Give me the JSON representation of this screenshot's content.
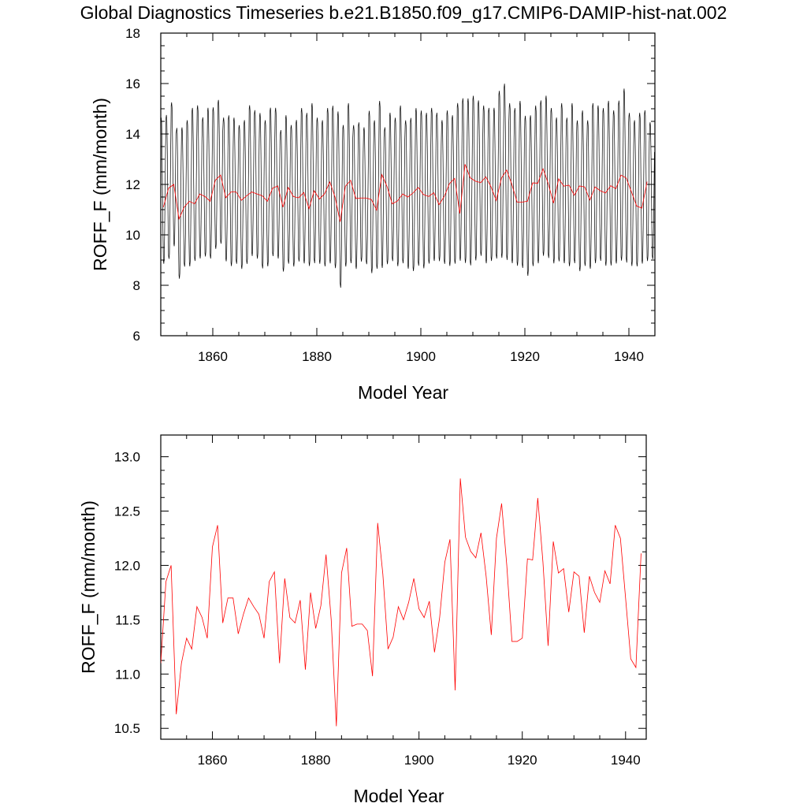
{
  "title": "Global Diagnostics Timeseries b.e21.B1850.f09_g17.CMIP6-DAMIP-hist-nat.002",
  "colors": {
    "monthly": "#000000",
    "annual": "#ff0000"
  },
  "chart_data": [
    {
      "type": "line",
      "xlabel": "Model Year",
      "ylabel": "ROFF_F (mm/month)",
      "xlim": [
        1850,
        1945
      ],
      "ylim": [
        6,
        18
      ],
      "xticks": [
        1860,
        1880,
        1900,
        1920,
        1940
      ],
      "xtick_labels": [
        "1860",
        "1880",
        "1900",
        "1920",
        "1940"
      ],
      "yticks": [
        6,
        8,
        10,
        12,
        14,
        16,
        18
      ],
      "ytick_labels": [
        "6",
        "8",
        "10",
        "12",
        "14",
        "16",
        "18"
      ],
      "series": [
        {
          "kind": "monthly",
          "color": "#000000",
          "x_start": 1850.0,
          "x_step": 0.0833333,
          "annual_peaks": [
            14.9,
            15.0,
            15.5,
            14.5,
            14.5,
            14.8,
            15.3,
            15.4,
            14.9,
            15.3,
            15.3,
            15.6,
            14.9,
            15.0,
            14.9,
            14.6,
            14.8,
            15.4,
            15.2,
            15.1,
            14.8,
            15.3,
            15.3,
            14.4,
            15.0,
            14.6,
            14.8,
            15.3,
            15.1,
            15.5,
            14.9,
            14.8,
            15.3,
            15.4,
            15.2,
            14.6,
            15.5,
            14.6,
            14.7,
            14.5,
            15.2,
            14.8,
            15.6,
            14.5,
            15.1,
            14.9,
            15.4,
            14.8,
            14.9,
            15.3,
            15.2,
            15.1,
            15.3,
            15.1,
            14.8,
            15.2,
            15.0,
            15.5,
            15.7,
            15.7,
            15.8,
            15.6,
            15.4,
            15.3,
            15.3,
            16.0,
            16.3,
            15.5,
            15.3,
            15.6,
            15.0,
            15.0,
            15.4,
            15.6,
            15.8,
            15.3,
            14.9,
            15.5,
            14.9,
            15.5,
            14.8,
            15.2,
            14.8,
            15.5,
            15.4,
            15.3,
            15.6,
            15.2,
            15.6,
            16.1,
            15.1,
            14.8,
            15.1,
            15.2,
            14.7
          ],
          "annual_troughs": [
            8.6,
            8.8,
            9.3,
            8.0,
            8.5,
            8.5,
            8.7,
            8.8,
            8.9,
            8.8,
            9.2,
            9.4,
            8.7,
            8.5,
            8.6,
            8.4,
            8.6,
            8.9,
            8.8,
            8.4,
            8.5,
            8.9,
            8.8,
            8.3,
            8.6,
            8.5,
            8.7,
            8.6,
            8.5,
            8.6,
            8.6,
            8.5,
            8.6,
            8.4,
            7.6,
            8.5,
            8.6,
            8.4,
            8.7,
            8.6,
            8.2,
            8.4,
            8.4,
            8.6,
            8.7,
            8.5,
            8.6,
            8.4,
            8.3,
            8.5,
            8.4,
            8.6,
            8.7,
            8.7,
            8.6,
            8.5,
            8.6,
            8.7,
            8.6,
            8.5,
            8.7,
            8.9,
            8.6,
            8.7,
            8.8,
            8.8,
            8.7,
            8.6,
            8.5,
            8.4,
            8.1,
            8.5,
            8.6,
            8.9,
            8.8,
            8.6,
            8.7,
            8.6,
            8.5,
            8.6,
            8.3,
            8.5,
            8.4,
            8.6,
            8.7,
            8.5,
            8.5,
            8.6,
            8.7,
            8.6,
            8.5,
            8.5,
            8.6,
            8.7,
            8.8
          ]
        },
        {
          "kind": "annual",
          "color": "#ff0000",
          "x_start": 1850.5,
          "x_step": 1,
          "values": [
            11.1,
            11.85,
            12.0,
            10.63,
            11.1,
            11.33,
            11.23,
            11.62,
            11.52,
            11.33,
            12.17,
            12.37,
            11.47,
            11.7,
            11.7,
            11.37,
            11.55,
            11.7,
            11.62,
            11.55,
            11.33,
            11.85,
            11.94,
            11.1,
            11.88,
            11.52,
            11.47,
            11.68,
            11.04,
            11.75,
            11.42,
            11.63,
            12.1,
            11.5,
            10.52,
            11.93,
            12.16,
            11.44,
            11.46,
            11.46,
            11.4,
            10.98,
            12.39,
            11.92,
            11.23,
            11.34,
            11.62,
            11.5,
            11.66,
            11.88,
            11.6,
            11.52,
            11.67,
            11.2,
            11.52,
            12.03,
            12.24,
            10.85,
            12.8,
            12.26,
            12.13,
            12.07,
            12.3,
            11.9,
            11.36,
            12.25,
            12.57,
            12.0,
            11.3,
            11.3,
            11.33,
            12.06,
            12.05,
            12.62,
            12.03,
            11.26,
            12.22,
            11.93,
            11.97,
            11.57,
            11.94,
            11.9,
            11.38,
            11.9,
            11.75,
            11.66,
            11.95,
            11.83,
            12.37,
            12.25,
            11.7,
            11.14,
            11.06,
            12.11
          ]
        }
      ]
    },
    {
      "type": "line",
      "xlabel": "Model Year",
      "ylabel": "ROFF_F (mm/month)",
      "xlim": [
        1850,
        1944
      ],
      "ylim": [
        10.4,
        13.2
      ],
      "xticks": [
        1860,
        1880,
        1900,
        1920,
        1940
      ],
      "xtick_labels": [
        "1860",
        "1880",
        "1900",
        "1920",
        "1940"
      ],
      "yticks": [
        10.5,
        11.0,
        11.5,
        12.0,
        12.5,
        13.0
      ],
      "ytick_labels": [
        "10.5",
        "11.0",
        "11.5",
        "12.0",
        "12.5",
        "13.0"
      ],
      "series": [
        {
          "kind": "annual",
          "color": "#ff0000",
          "x_start": 1850,
          "x_step": 1,
          "values": [
            11.1,
            11.85,
            12.0,
            10.63,
            11.1,
            11.33,
            11.23,
            11.62,
            11.52,
            11.33,
            12.17,
            12.37,
            11.47,
            11.7,
            11.7,
            11.37,
            11.55,
            11.7,
            11.62,
            11.55,
            11.33,
            11.85,
            11.94,
            11.1,
            11.88,
            11.52,
            11.47,
            11.68,
            11.04,
            11.75,
            11.42,
            11.63,
            12.1,
            11.5,
            10.52,
            11.93,
            12.16,
            11.44,
            11.46,
            11.46,
            11.4,
            10.98,
            12.39,
            11.92,
            11.23,
            11.34,
            11.62,
            11.5,
            11.66,
            11.88,
            11.6,
            11.52,
            11.67,
            11.2,
            11.52,
            12.03,
            12.24,
            10.85,
            12.8,
            12.26,
            12.13,
            12.07,
            12.3,
            11.9,
            11.36,
            12.25,
            12.57,
            12.0,
            11.3,
            11.3,
            11.33,
            12.06,
            12.05,
            12.62,
            12.03,
            11.26,
            12.22,
            11.93,
            11.97,
            11.57,
            11.94,
            11.9,
            11.38,
            11.9,
            11.75,
            11.66,
            11.95,
            11.83,
            12.37,
            12.25,
            11.7,
            11.14,
            11.06,
            12.11
          ]
        }
      ]
    }
  ]
}
